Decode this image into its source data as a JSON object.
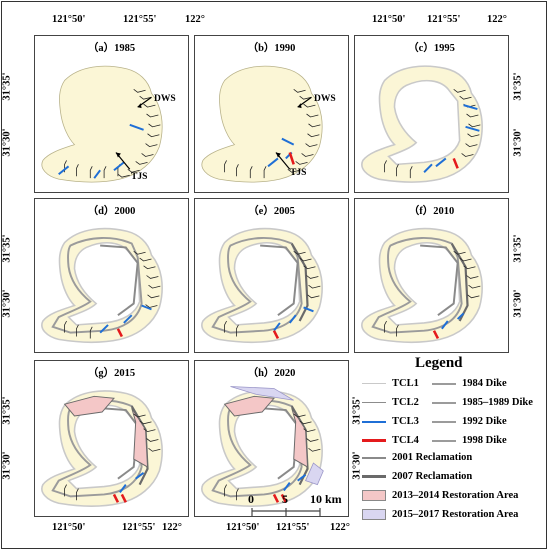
{
  "colors": {
    "land": "#fbf6d6",
    "tcl1": "#c9c9c9",
    "tcl2": "#8c8c8c",
    "tcl3": "#1f6fd6",
    "tcl4": "#e41a1c",
    "dike": "#9b9b9b",
    "reclamation2001": "#8a8a8a",
    "reclamation2007": "#6a6a6a",
    "restore_2013": "#f4c7c7",
    "restore_2015": "#d9d6f1",
    "creek": "#222222"
  },
  "panels": [
    {
      "label": "（a）1985"
    },
    {
      "label": "（b）1990"
    },
    {
      "label": "（c）1995"
    },
    {
      "label": "（d）2000"
    },
    {
      "label": "（e）2005"
    },
    {
      "label": "（f）2010"
    },
    {
      "label": "（g）2015"
    },
    {
      "label": "（h）2020"
    }
  ],
  "coords": {
    "lon_top": [
      "121°50'",
      "121°55'",
      "122°"
    ],
    "lon_bottom": [
      "121°50'",
      "121°55'",
      "122°"
    ],
    "lat_left": [
      "31°35'",
      "31°30'"
    ],
    "lat_right": [
      "31°35'",
      "31°30'"
    ]
  },
  "annotations": {
    "dws": "DWS",
    "tjs": "TJS"
  },
  "scale": {
    "zero": "0",
    "five": "5",
    "ten": "10 km"
  },
  "legend": {
    "title": "Legend",
    "col1": [
      {
        "label": "TCL1",
        "icon": "line-tcl1"
      },
      {
        "label": "TCL2",
        "icon": "line-tcl2"
      },
      {
        "label": "TCL3",
        "icon": "line-tcl3"
      },
      {
        "label": "TCL4",
        "icon": "line-tcl4"
      }
    ],
    "col2": [
      {
        "label": "1984 Dike",
        "icon": "line-dike"
      },
      {
        "label": "1985–1989 Dike",
        "icon": "line-dike"
      },
      {
        "label": "1992 Dike",
        "icon": "line-dike"
      },
      {
        "label": "1998 Dike",
        "icon": "line-dike"
      }
    ],
    "wide": [
      {
        "label": "2001 Reclamation",
        "icon": "line-recl2001"
      },
      {
        "label": "2007 Reclamation",
        "icon": "line-recl2007"
      },
      {
        "label": "2013–2014 Restoration Area",
        "icon": "box-restore-2013"
      },
      {
        "label": "2015–2017 Restoration Area",
        "icon": "box-restore-2015"
      }
    ]
  }
}
